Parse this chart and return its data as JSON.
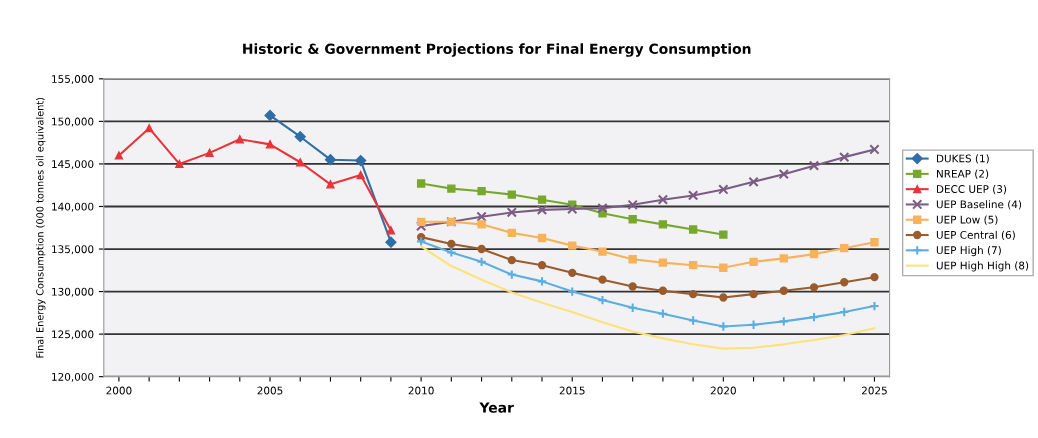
{
  "chart_data": {
    "type": "line",
    "title": "Historic & Government Projections for Final Energy Consumption",
    "xlabel": "Year",
    "ylabel": "Final Energy Consumption (000 tonnes oil equivalent)",
    "xlim": [
      1999.5,
      2025.5
    ],
    "xticks": [
      2000,
      {
        "value": 2001,
        "label": null
      },
      {
        "value": 2002,
        "label": null
      },
      {
        "value": 2003,
        "label": null
      },
      {
        "value": 2004,
        "label": null
      },
      2005,
      {
        "value": 2006,
        "label": null
      },
      {
        "value": 2007,
        "label": null
      },
      {
        "value": 2008,
        "label": null
      },
      {
        "value": 2009,
        "label": null
      },
      2010,
      {
        "value": 2011,
        "label": null
      },
      {
        "value": 2012,
        "label": null
      },
      {
        "value": 2013,
        "label": null
      },
      {
        "value": 2014,
        "label": null
      },
      2015,
      {
        "value": 2016,
        "label": null
      },
      {
        "value": 2017,
        "label": null
      },
      {
        "value": 2018,
        "label": null
      },
      {
        "value": 2019,
        "label": null
      },
      2020,
      {
        "value": 2021,
        "label": null
      },
      {
        "value": 2022,
        "label": null
      },
      {
        "value": 2023,
        "label": null
      },
      {
        "value": 2024,
        "label": null
      },
      2025
    ],
    "ylim": [
      120000,
      155000
    ],
    "yticks": [
      {
        "value": 120000,
        "label": "120,000"
      },
      {
        "value": 125000,
        "label": "125,000"
      },
      {
        "value": 130000,
        "label": "130,000"
      },
      {
        "value": 135000,
        "label": "135,000"
      },
      {
        "value": 140000,
        "label": "140,000"
      },
      {
        "value": 145000,
        "label": "145,000"
      },
      {
        "value": 150000,
        "label": "150,000"
      },
      {
        "value": 155000,
        "label": "155,000"
      }
    ],
    "grid": "y",
    "legend": "right",
    "series": [
      {
        "name": "DUKES (1)",
        "color": "#2f6ea5",
        "marker": "diamond",
        "x": [
          2005,
          2006,
          2007,
          2008,
          2009
        ],
        "values": [
          150700,
          148200,
          145500,
          145400,
          135800
        ]
      },
      {
        "name": "NREAP (2)",
        "color": "#77a82c",
        "marker": "square",
        "x": [
          2010,
          2011,
          2012,
          2013,
          2014,
          2015,
          2016,
          2017,
          2018,
          2019,
          2020
        ],
        "values": [
          142700,
          142100,
          141800,
          141400,
          140800,
          140200,
          139200,
          138500,
          137900,
          137300,
          136700
        ]
      },
      {
        "name": "DECC UEP (3)",
        "color": "#e8343a",
        "marker": "triangle",
        "x": [
          2000,
          2001,
          2002,
          2003,
          2004,
          2005,
          2006,
          2007,
          2008,
          2009
        ],
        "values": [
          146000,
          149200,
          145000,
          146300,
          147900,
          147300,
          145200,
          142600,
          143700,
          137200
        ]
      },
      {
        "name": "UEP Baseline (4)",
        "color": "#7b5c84",
        "marker": "cross",
        "x": [
          2010,
          2011,
          2012,
          2013,
          2014,
          2015,
          2016,
          2017,
          2018,
          2019,
          2020,
          2021,
          2022,
          2023,
          2024,
          2025
        ],
        "values": [
          137700,
          138200,
          138800,
          139300,
          139600,
          139700,
          139800,
          140200,
          140800,
          141300,
          142000,
          142900,
          143800,
          144800,
          145800,
          146700
        ]
      },
      {
        "name": "UEP Low (5)",
        "color": "#f7b25a",
        "marker": "square",
        "x": [
          2010,
          2011,
          2012,
          2013,
          2014,
          2015,
          2016,
          2017,
          2018,
          2019,
          2020,
          2021,
          2022,
          2023,
          2024,
          2025
        ],
        "values": [
          138200,
          138200,
          137900,
          136900,
          136300,
          135400,
          134700,
          133800,
          133400,
          133100,
          132800,
          133500,
          133900,
          134400,
          135100,
          135800
        ]
      },
      {
        "name": "UEP Central (6)",
        "color": "#9a5b2d",
        "marker": "circle",
        "x": [
          2010,
          2011,
          2012,
          2013,
          2014,
          2015,
          2016,
          2017,
          2018,
          2019,
          2020,
          2021,
          2022,
          2023,
          2024,
          2025
        ],
        "values": [
          136400,
          135600,
          135000,
          133700,
          133100,
          132200,
          131400,
          130600,
          130100,
          129700,
          129300,
          129700,
          130100,
          130500,
          131100,
          131700
        ]
      },
      {
        "name": "UEP High (7)",
        "color": "#5aaee0",
        "marker": "plus",
        "x": [
          2010,
          2011,
          2012,
          2013,
          2014,
          2015,
          2016,
          2017,
          2018,
          2019,
          2020,
          2021,
          2022,
          2023,
          2024,
          2025
        ],
        "values": [
          135900,
          134600,
          133500,
          132000,
          131200,
          130000,
          129000,
          128100,
          127400,
          126600,
          125900,
          126100,
          126500,
          127000,
          127600,
          128300
        ]
      },
      {
        "name": "UEP High High (8)",
        "color": "#fbe27a",
        "marker": "none",
        "x": [
          2010,
          2011,
          2012,
          2013,
          2014,
          2015,
          2016,
          2017,
          2018,
          2019,
          2020,
          2021,
          2022,
          2023,
          2024,
          2025
        ],
        "values": [
          135300,
          133000,
          131400,
          129900,
          128700,
          127600,
          126400,
          125300,
          124500,
          123800,
          123300,
          123400,
          123800,
          124300,
          124900,
          125700
        ]
      }
    ]
  }
}
